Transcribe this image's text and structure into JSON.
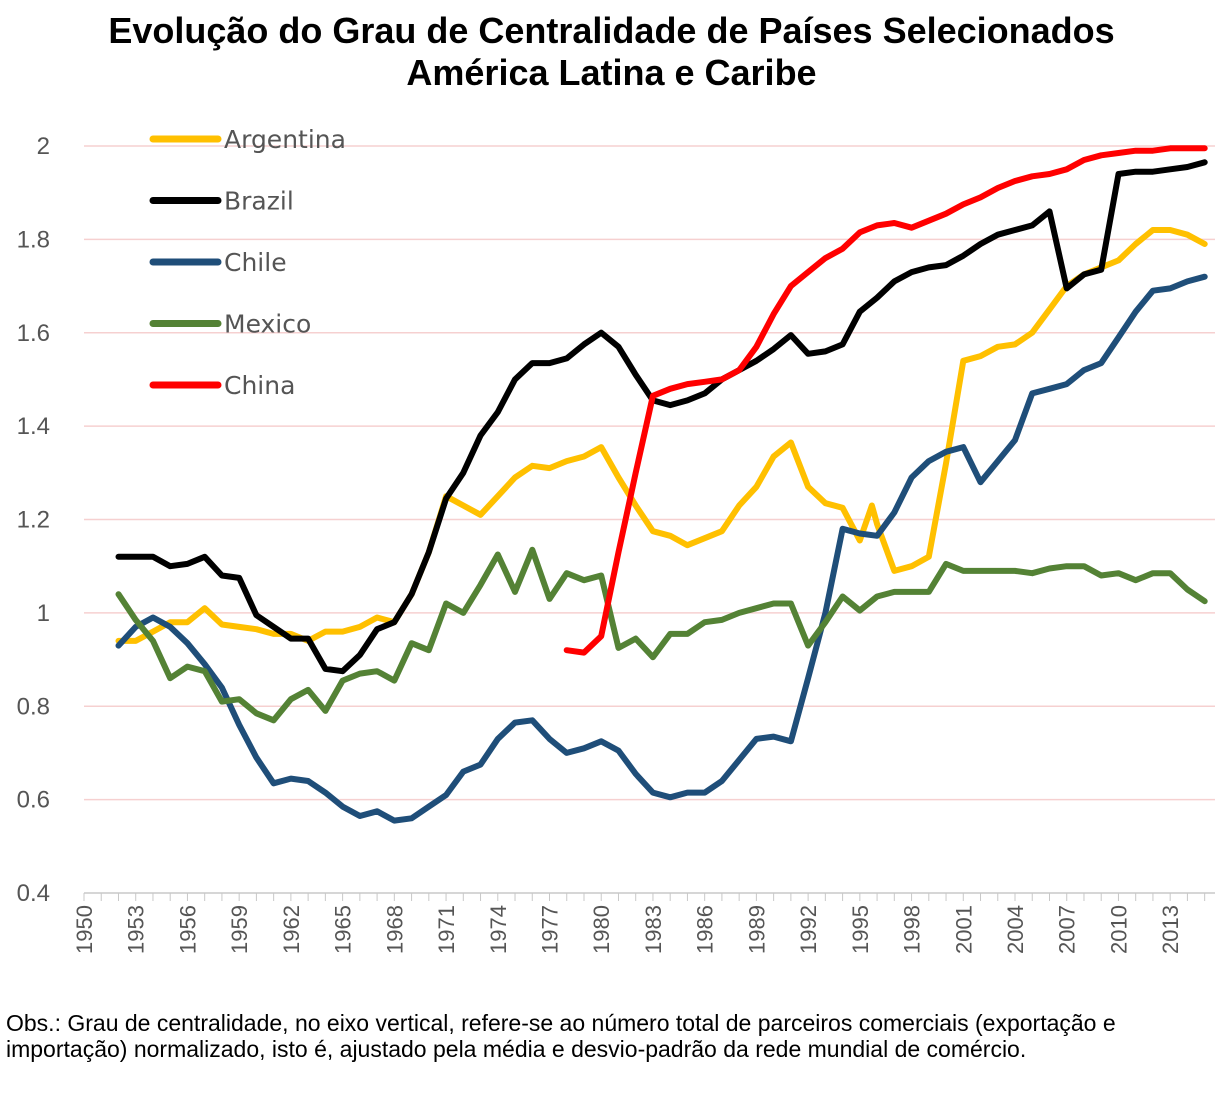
{
  "title_line1": "Evolução do Grau de Centralidade de Países Selecionados",
  "title_line2": "América Latina e Caribe",
  "note": "Obs.: Grau de centralidade, no eixo vertical, refere-se ao número total de parceiros comerciais (exportação e importação) normalizado, isto é, ajustado pela média e desvio-padrão da rede mundial de comércio.",
  "chart_data": {
    "type": "line",
    "title": "Evolução do Grau de Centralidade de Países Selecionados — América Latina e Caribe",
    "xlabel": "",
    "ylabel": "",
    "ylim": [
      0.4,
      2.0
    ],
    "yticks": [
      "2",
      "1.8",
      "1.6",
      "1.4",
      "1.2",
      "1",
      "0.8",
      "0.6",
      "0.4"
    ],
    "xticks": [
      "1950",
      "1953",
      "1956",
      "1959",
      "1962",
      "1965",
      "1968",
      "1971",
      "1974",
      "1977",
      "1980",
      "1983",
      "1986",
      "1989",
      "1992",
      "1995",
      "1998",
      "2001",
      "2004",
      "2007",
      "2010",
      "2013"
    ],
    "grid": true,
    "legend_position": "top-left",
    "series": [
      {
        "name": "Argentina",
        "color": "#FFC000",
        "x": [
          1952,
          1953,
          1954,
          1955,
          1956,
          1957,
          1958,
          1959,
          1960,
          1961,
          1962,
          1963,
          1964,
          1965,
          1966,
          1967,
          1968,
          1969,
          1970,
          1971,
          1972,
          1973,
          1974,
          1975,
          1976,
          1977,
          1978,
          1979,
          1980,
          1981,
          1982,
          1983,
          1984,
          1985,
          1986,
          1987,
          1988,
          1989,
          1990,
          1991,
          1992,
          1993,
          1994,
          1995,
          1995.7,
          1996,
          1997,
          1998,
          1999,
          2000,
          2001,
          2002,
          2003,
          2004,
          2005,
          2006,
          2007,
          2008,
          2009,
          2010,
          2011,
          2012,
          2013,
          2014,
          2015
        ],
        "y": [
          0.94,
          0.94,
          0.96,
          0.98,
          0.98,
          1.01,
          0.975,
          0.97,
          0.965,
          0.955,
          0.955,
          0.94,
          0.96,
          0.96,
          0.97,
          0.99,
          0.98,
          1.04,
          1.13,
          1.25,
          1.23,
          1.21,
          1.25,
          1.29,
          1.315,
          1.31,
          1.325,
          1.335,
          1.355,
          1.29,
          1.23,
          1.175,
          1.165,
          1.145,
          1.16,
          1.175,
          1.23,
          1.27,
          1.335,
          1.365,
          1.27,
          1.235,
          1.225,
          1.155,
          1.23,
          1.19,
          1.09,
          1.1,
          1.12,
          1.32,
          1.54,
          1.55,
          1.57,
          1.575,
          1.6,
          1.65,
          1.7,
          1.725,
          1.74,
          1.755,
          1.79,
          1.82,
          1.82,
          1.81,
          1.79
        ]
      },
      {
        "name": "Brazil",
        "color": "#000000",
        "x": [
          1952,
          1953,
          1954,
          1955,
          1956,
          1957,
          1958,
          1959,
          1960,
          1961,
          1962,
          1963,
          1964,
          1965,
          1966,
          1967,
          1968,
          1969,
          1970,
          1971,
          1972,
          1973,
          1974,
          1975,
          1976,
          1977,
          1978,
          1979,
          1980,
          1981,
          1982,
          1983,
          1984,
          1985,
          1986,
          1987,
          1988,
          1989,
          1990,
          1991,
          1992,
          1993,
          1994,
          1995,
          1996,
          1997,
          1998,
          1999,
          2000,
          2001,
          2002,
          2003,
          2004,
          2005,
          2006,
          2007,
          2008,
          2009,
          2010,
          2011,
          2012,
          2013,
          2014,
          2015
        ],
        "y": [
          1.12,
          1.12,
          1.12,
          1.1,
          1.105,
          1.12,
          1.08,
          1.075,
          0.995,
          0.97,
          0.945,
          0.945,
          0.88,
          0.875,
          0.91,
          0.965,
          0.98,
          1.04,
          1.13,
          1.245,
          1.3,
          1.38,
          1.43,
          1.5,
          1.535,
          1.535,
          1.545,
          1.575,
          1.6,
          1.57,
          1.51,
          1.455,
          1.445,
          1.455,
          1.47,
          1.5,
          1.52,
          1.54,
          1.565,
          1.595,
          1.555,
          1.56,
          1.575,
          1.645,
          1.675,
          1.71,
          1.73,
          1.74,
          1.745,
          1.765,
          1.79,
          1.81,
          1.82,
          1.83,
          1.86,
          1.695,
          1.725,
          1.735,
          1.94,
          1.945,
          1.945,
          1.95,
          1.955,
          1.965
        ]
      },
      {
        "name": "Chile",
        "color": "#1F4E79",
        "x": [
          1952,
          1953,
          1954,
          1955,
          1956,
          1957,
          1958,
          1959,
          1960,
          1961,
          1962,
          1963,
          1964,
          1965,
          1966,
          1967,
          1968,
          1969,
          1970,
          1971,
          1972,
          1973,
          1974,
          1975,
          1976,
          1977,
          1978,
          1979,
          1980,
          1981,
          1982,
          1983,
          1984,
          1985,
          1986,
          1987,
          1988,
          1989,
          1990,
          1991,
          1992,
          1993,
          1994,
          1995,
          1996,
          1997,
          1998,
          1999,
          2000,
          2001,
          2002,
          2003,
          2004,
          2005,
          2006,
          2007,
          2008,
          2009,
          2010,
          2011,
          2012,
          2013,
          2014,
          2015
        ],
        "y": [
          0.93,
          0.97,
          0.99,
          0.97,
          0.935,
          0.89,
          0.84,
          0.76,
          0.69,
          0.635,
          0.645,
          0.64,
          0.615,
          0.585,
          0.565,
          0.575,
          0.555,
          0.56,
          0.585,
          0.61,
          0.66,
          0.675,
          0.73,
          0.765,
          0.77,
          0.73,
          0.7,
          0.71,
          0.725,
          0.705,
          0.655,
          0.615,
          0.605,
          0.615,
          0.615,
          0.64,
          0.685,
          0.73,
          0.735,
          0.725,
          0.86,
          1.0,
          1.18,
          1.17,
          1.165,
          1.215,
          1.29,
          1.325,
          1.345,
          1.355,
          1.28,
          1.325,
          1.37,
          1.47,
          1.48,
          1.49,
          1.52,
          1.535,
          1.59,
          1.645,
          1.69,
          1.695,
          1.71,
          1.72
        ]
      },
      {
        "name": "Mexico",
        "color": "#548235",
        "x": [
          1952,
          1953,
          1954,
          1955,
          1956,
          1957,
          1958,
          1959,
          1960,
          1961,
          1962,
          1963,
          1964,
          1965,
          1966,
          1967,
          1968,
          1969,
          1970,
          1971,
          1972,
          1973,
          1974,
          1975,
          1976,
          1977,
          1978,
          1979,
          1980,
          1981,
          1982,
          1983,
          1984,
          1985,
          1986,
          1987,
          1988,
          1989,
          1990,
          1991,
          1992,
          1993,
          1994,
          1995,
          1996,
          1997,
          1998,
          1999,
          2000,
          2001,
          2002,
          2003,
          2004,
          2005,
          2006,
          2007,
          2008,
          2009,
          2010,
          2011,
          2012,
          2013,
          2014,
          2015
        ],
        "y": [
          1.04,
          0.985,
          0.94,
          0.86,
          0.885,
          0.875,
          0.81,
          0.815,
          0.785,
          0.77,
          0.815,
          0.835,
          0.79,
          0.855,
          0.87,
          0.875,
          0.855,
          0.935,
          0.92,
          1.02,
          1.0,
          1.06,
          1.125,
          1.045,
          1.135,
          1.03,
          1.085,
          1.07,
          1.08,
          0.925,
          0.945,
          0.905,
          0.955,
          0.955,
          0.98,
          0.985,
          1.0,
          1.01,
          1.02,
          1.02,
          0.93,
          0.98,
          1.035,
          1.005,
          1.035,
          1.045,
          1.045,
          1.045,
          1.105,
          1.09,
          1.09,
          1.09,
          1.09,
          1.085,
          1.095,
          1.1,
          1.1,
          1.08,
          1.085,
          1.07,
          1.085,
          1.085,
          1.05,
          1.025
        ]
      },
      {
        "name": "China",
        "color": "#FF0000",
        "x": [
          1978,
          1979,
          1980,
          1981,
          1982,
          1983,
          1984,
          1985,
          1986,
          1987,
          1988,
          1989,
          1990,
          1991,
          1992,
          1993,
          1994,
          1995,
          1996,
          1997,
          1998,
          1999,
          2000,
          2001,
          2002,
          2003,
          2004,
          2005,
          2006,
          2007,
          2008,
          2009,
          2010,
          2011,
          2012,
          2013,
          2014,
          2015
        ],
        "y": [
          0.92,
          0.915,
          0.95,
          1.13,
          1.3,
          1.465,
          1.48,
          1.49,
          1.495,
          1.5,
          1.52,
          1.57,
          1.64,
          1.7,
          1.73,
          1.76,
          1.78,
          1.815,
          1.83,
          1.835,
          1.825,
          1.84,
          1.855,
          1.875,
          1.89,
          1.91,
          1.925,
          1.935,
          1.94,
          1.95,
          1.97,
          1.98,
          1.985,
          1.99,
          1.99,
          1.995,
          1.995,
          1.995
        ]
      }
    ]
  }
}
